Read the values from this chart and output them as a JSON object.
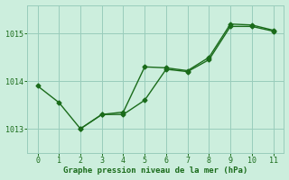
{
  "line1_x": [
    0,
    1,
    2,
    3,
    4,
    5,
    6,
    7,
    8,
    9,
    10,
    11
  ],
  "line1_y": [
    1013.9,
    1013.55,
    1013.0,
    1013.3,
    1013.3,
    1013.6,
    1014.25,
    1014.2,
    1014.45,
    1015.15,
    1015.15,
    1015.05
  ],
  "line2_x": [
    2,
    3,
    4,
    5,
    6,
    7,
    8,
    9,
    10,
    11
  ],
  "line2_y": [
    1013.0,
    1013.3,
    1013.35,
    1014.3,
    1014.28,
    1014.22,
    1014.5,
    1015.2,
    1015.18,
    1015.07
  ],
  "line_color": "#1a6b1a",
  "bg_color": "#cceedd",
  "grid_color": "#99ccbb",
  "xlabel": "Graphe pression niveau de la mer (hPa)",
  "ylim": [
    1012.5,
    1015.6
  ],
  "xlim": [
    -0.5,
    11.5
  ],
  "yticks": [
    1013,
    1014,
    1015
  ],
  "xticks": [
    0,
    1,
    2,
    3,
    4,
    5,
    6,
    7,
    8,
    9,
    10,
    11
  ],
  "tick_color": "#1a6b1a",
  "label_color": "#1a6b1a",
  "marker": "D",
  "markersize": 2.5,
  "linewidth": 1.0
}
